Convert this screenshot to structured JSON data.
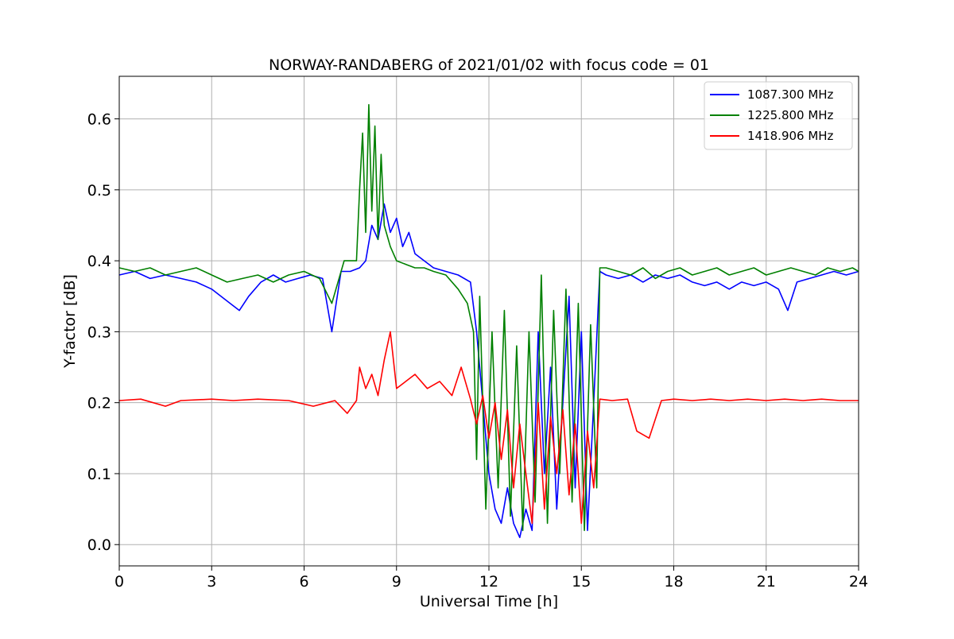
{
  "chart_data": {
    "type": "line",
    "title": "NORWAY-RANDABERG of 2021/01/02 with focus code = 01",
    "xlabel": "Universal Time [h]",
    "ylabel": "Y-factor [dB]",
    "xlim": [
      0,
      24
    ],
    "ylim": [
      -0.03,
      0.66
    ],
    "xticks": [
      0,
      3,
      6,
      9,
      12,
      15,
      18,
      21,
      24
    ],
    "xtick_labels": [
      "0",
      "3",
      "6",
      "9",
      "12",
      "15",
      "18",
      "21",
      "24"
    ],
    "yticks": [
      0.0,
      0.1,
      0.2,
      0.3,
      0.4,
      0.5,
      0.6
    ],
    "ytick_labels": [
      "0.0",
      "0.1",
      "0.2",
      "0.3",
      "0.4",
      "0.5",
      "0.6"
    ],
    "grid": true,
    "legend_position": "top-right",
    "series": [
      {
        "name": "1087.300 MHz",
        "color": "#0000ff",
        "x": [
          0,
          0.5,
          1.0,
          1.5,
          2.0,
          2.5,
          3.0,
          3.3,
          3.6,
          3.9,
          4.2,
          4.6,
          5.0,
          5.4,
          5.8,
          6.2,
          6.6,
          6.9,
          7.2,
          7.5,
          7.8,
          8.0,
          8.2,
          8.4,
          8.6,
          8.8,
          9.0,
          9.2,
          9.4,
          9.6,
          9.9,
          10.2,
          10.6,
          11.0,
          11.4,
          11.6,
          11.8,
          12.0,
          12.2,
          12.4,
          12.6,
          12.8,
          13.0,
          13.2,
          13.4,
          13.6,
          13.8,
          14.0,
          14.2,
          14.4,
          14.6,
          14.8,
          15.0,
          15.2,
          15.4,
          15.6,
          15.8,
          16.2,
          16.6,
          17.0,
          17.4,
          17.8,
          18.2,
          18.6,
          19.0,
          19.4,
          19.8,
          20.2,
          20.6,
          21.0,
          21.4,
          21.7,
          22.0,
          22.4,
          22.8,
          23.2,
          23.6,
          24.0
        ],
        "y": [
          0.38,
          0.385,
          0.375,
          0.38,
          0.375,
          0.37,
          0.36,
          0.35,
          0.34,
          0.33,
          0.35,
          0.37,
          0.38,
          0.37,
          0.375,
          0.38,
          0.375,
          0.3,
          0.385,
          0.385,
          0.39,
          0.4,
          0.45,
          0.43,
          0.48,
          0.44,
          0.46,
          0.42,
          0.44,
          0.41,
          0.4,
          0.39,
          0.385,
          0.38,
          0.37,
          0.3,
          0.2,
          0.1,
          0.05,
          0.03,
          0.08,
          0.03,
          0.01,
          0.05,
          0.02,
          0.3,
          0.1,
          0.25,
          0.05,
          0.2,
          0.35,
          0.08,
          0.3,
          0.02,
          0.2,
          0.385,
          0.38,
          0.375,
          0.38,
          0.37,
          0.38,
          0.375,
          0.38,
          0.37,
          0.365,
          0.37,
          0.36,
          0.37,
          0.365,
          0.37,
          0.36,
          0.33,
          0.37,
          0.375,
          0.38,
          0.385,
          0.38,
          0.385
        ]
      },
      {
        "name": "1225.800 MHz",
        "color": "#008000",
        "x": [
          0,
          0.5,
          1.0,
          1.5,
          2.0,
          2.5,
          3.0,
          3.5,
          4.0,
          4.5,
          5.0,
          5.5,
          6.0,
          6.5,
          6.9,
          7.3,
          7.7,
          7.8,
          7.9,
          8.0,
          8.1,
          8.2,
          8.3,
          8.4,
          8.5,
          8.6,
          8.8,
          9.0,
          9.3,
          9.6,
          9.9,
          10.2,
          10.6,
          11.0,
          11.3,
          11.5,
          11.6,
          11.7,
          11.9,
          12.1,
          12.3,
          12.5,
          12.7,
          12.9,
          13.1,
          13.3,
          13.5,
          13.7,
          13.9,
          14.1,
          14.3,
          14.5,
          14.7,
          14.9,
          15.1,
          15.3,
          15.5,
          15.6,
          15.8,
          16.2,
          16.6,
          17.0,
          17.4,
          17.8,
          18.2,
          18.6,
          19.0,
          19.4,
          19.8,
          20.2,
          20.6,
          21.0,
          21.4,
          21.8,
          22.2,
          22.6,
          23.0,
          23.4,
          23.8,
          24.0
        ],
        "y": [
          0.39,
          0.385,
          0.39,
          0.38,
          0.385,
          0.39,
          0.38,
          0.37,
          0.375,
          0.38,
          0.37,
          0.38,
          0.385,
          0.375,
          0.34,
          0.4,
          0.4,
          0.5,
          0.58,
          0.44,
          0.62,
          0.47,
          0.59,
          0.43,
          0.55,
          0.45,
          0.42,
          0.4,
          0.395,
          0.39,
          0.39,
          0.385,
          0.38,
          0.36,
          0.34,
          0.3,
          0.12,
          0.35,
          0.05,
          0.3,
          0.08,
          0.33,
          0.04,
          0.28,
          0.02,
          0.3,
          0.06,
          0.38,
          0.03,
          0.33,
          0.1,
          0.36,
          0.06,
          0.34,
          0.02,
          0.31,
          0.08,
          0.39,
          0.39,
          0.385,
          0.38,
          0.39,
          0.375,
          0.385,
          0.39,
          0.38,
          0.385,
          0.39,
          0.38,
          0.385,
          0.39,
          0.38,
          0.385,
          0.39,
          0.385,
          0.38,
          0.39,
          0.385,
          0.39,
          0.385
        ]
      },
      {
        "name": "1418.906 MHz",
        "color": "#ff0000",
        "x": [
          0,
          0.7,
          1.5,
          2.0,
          3.0,
          3.7,
          4.5,
          5.5,
          6.3,
          7.0,
          7.4,
          7.7,
          7.8,
          8.0,
          8.2,
          8.4,
          8.6,
          8.8,
          9.0,
          9.3,
          9.6,
          10.0,
          10.4,
          10.8,
          11.1,
          11.4,
          11.6,
          11.8,
          12.0,
          12.2,
          12.4,
          12.6,
          12.8,
          13.0,
          13.2,
          13.4,
          13.6,
          13.8,
          14.0,
          14.2,
          14.4,
          14.6,
          14.8,
          15.0,
          15.2,
          15.4,
          15.6,
          16.0,
          16.5,
          16.8,
          17.2,
          17.6,
          18.0,
          18.6,
          19.2,
          19.8,
          20.4,
          21.0,
          21.6,
          22.2,
          22.8,
          23.4,
          24.0
        ],
        "y": [
          0.203,
          0.205,
          0.195,
          0.203,
          0.205,
          0.203,
          0.205,
          0.203,
          0.195,
          0.203,
          0.185,
          0.203,
          0.25,
          0.22,
          0.24,
          0.21,
          0.26,
          0.3,
          0.22,
          0.23,
          0.24,
          0.22,
          0.23,
          0.21,
          0.25,
          0.205,
          0.17,
          0.21,
          0.15,
          0.2,
          0.12,
          0.19,
          0.08,
          0.17,
          0.1,
          0.03,
          0.2,
          0.05,
          0.18,
          0.1,
          0.19,
          0.07,
          0.17,
          0.03,
          0.16,
          0.08,
          0.205,
          0.203,
          0.205,
          0.16,
          0.15,
          0.203,
          0.205,
          0.203,
          0.205,
          0.203,
          0.205,
          0.203,
          0.205,
          0.203,
          0.205,
          0.203,
          0.203
        ]
      }
    ]
  }
}
